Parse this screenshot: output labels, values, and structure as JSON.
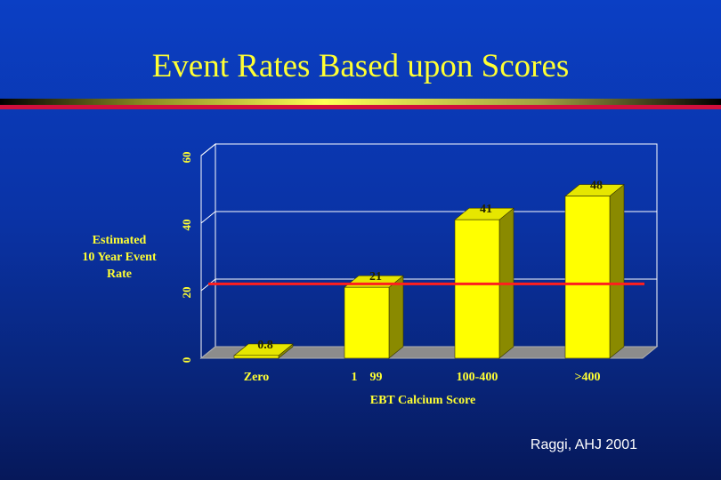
{
  "slide": {
    "title": "Event Rates Based upon Scores",
    "citation": "Raggi, AHJ 2001"
  },
  "colors": {
    "background": "#0a33a6",
    "title": "#ffff33",
    "bar_face": "#ffff00",
    "bar_side": "#8a8a00",
    "bar_top": "#e6e600",
    "floor": "#8c8c8c",
    "reference_line": "#ff1e1e",
    "axis_text": "#ffff33"
  },
  "chart_data": {
    "type": "bar",
    "categories": [
      "Zero",
      "1    99",
      "100-400",
      ">400"
    ],
    "values": [
      0.8,
      21,
      41,
      48
    ],
    "value_labels": [
      "0.8",
      "21",
      "41",
      "48"
    ],
    "ylabel_lines": [
      "Estimated",
      "10 Year Event",
      "Rate"
    ],
    "xlabel": "EBT Calcium Score",
    "ylim": [
      0,
      60
    ],
    "yticks": [
      "0",
      "20",
      "40",
      "60"
    ],
    "gridlines": true,
    "reference_line_value": 22,
    "style": "3d"
  }
}
